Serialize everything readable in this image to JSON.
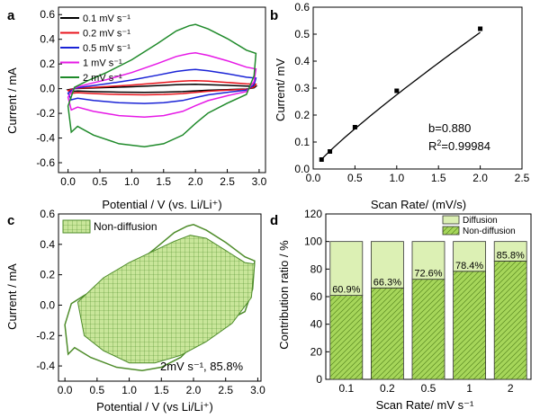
{
  "chart_data": [
    {
      "panel": "a",
      "type": "line",
      "xlabel": "Potential / V (vs. Li/Li⁺)",
      "ylabel": "Current / mA",
      "xlim": [
        -0.15,
        3.1
      ],
      "ylim": [
        -0.68,
        0.66
      ],
      "xticks": [
        "0.0",
        "0.5",
        "1.0",
        "1.5",
        "2.0",
        "2.5",
        "3.0"
      ],
      "yticks": [
        "-0.6",
        "-0.4",
        "-0.2",
        "0.0",
        "0.2",
        "0.4",
        "0.6"
      ],
      "legend_position": "top-left",
      "series": [
        {
          "name": "0.1 mV s⁻¹",
          "color": "#000000",
          "anodic_peak": 0.035,
          "cathodic_peak": -0.03
        },
        {
          "name": "0.2 mV s⁻¹",
          "color": "#e8141c",
          "anodic_peak": 0.065,
          "cathodic_peak": -0.05
        },
        {
          "name": "0.5 mV s⁻¹",
          "color": "#1a23d6",
          "anodic_peak": 0.155,
          "cathodic_peak": -0.12
        },
        {
          "name": "1 mV s⁻¹",
          "color": "#e619e6",
          "anodic_peak": 0.29,
          "cathodic_peak": -0.23
        },
        {
          "name": "2 mV s⁻¹",
          "color": "#1f8a2a",
          "anodic_peak": 0.52,
          "cathodic_peak": -0.47
        }
      ]
    },
    {
      "panel": "b",
      "type": "line",
      "xlabel": "Scan Rate/ (mV/s)",
      "ylabel": "Current/ mV",
      "xlim": [
        0,
        2.5
      ],
      "ylim": [
        0,
        0.6
      ],
      "xticks": [
        "0.0",
        "0.5",
        "1.0",
        "1.5",
        "2.0",
        "2.5"
      ],
      "yticks": [
        "0.0",
        "0.1",
        "0.2",
        "0.3",
        "0.4",
        "0.5",
        "0.6"
      ],
      "x": [
        0.1,
        0.2,
        0.5,
        1.0,
        2.0
      ],
      "y": [
        0.035,
        0.065,
        0.155,
        0.29,
        0.52
      ],
      "annotation_b": "b=0.880",
      "annotation_r2_prefix": "R",
      "annotation_r2_sup": "2",
      "annotation_r2_value": "=0.99984"
    },
    {
      "panel": "c",
      "type": "area",
      "xlabel": "Potential / V (vs Li/Li⁺)",
      "ylabel": "Current / mA",
      "xlim": [
        -0.1,
        3.05
      ],
      "ylim": [
        -0.5,
        0.6
      ],
      "xticks": [
        "0.0",
        "0.5",
        "1.0",
        "1.5",
        "2.0",
        "2.5",
        "3.0"
      ],
      "yticks": [
        "-0.4",
        "-0.2",
        "0.0",
        "0.2",
        "0.4",
        "0.6"
      ],
      "legend_label": "Non-diffusion",
      "annotation": "2mV s⁻¹, 85.8%",
      "color": "#4e8c2a",
      "fill": "#c9e69a"
    },
    {
      "panel": "d",
      "type": "bar",
      "xlabel": "Scan Rate/ mV s⁻¹",
      "ylabel": "Contribution ratio / %",
      "categories": [
        "0.1",
        "0.2",
        "0.5",
        "1",
        "2"
      ],
      "ylim": [
        0,
        120
      ],
      "yticks": [
        "0",
        "20",
        "40",
        "60",
        "80",
        "100",
        "120"
      ],
      "series": [
        {
          "name": "Diffusion",
          "values": [
            39.1,
            33.7,
            27.4,
            21.6,
            14.2
          ],
          "color": "#dcf0b4"
        },
        {
          "name": "Non-diffusion",
          "values": [
            60.9,
            66.3,
            72.6,
            78.4,
            85.8
          ],
          "color": "#a6d65a"
        }
      ],
      "labels": [
        "60.9%",
        "66.3%",
        "72.6%",
        "78.4%",
        "85.8%"
      ],
      "legend_position": "top-right"
    }
  ]
}
